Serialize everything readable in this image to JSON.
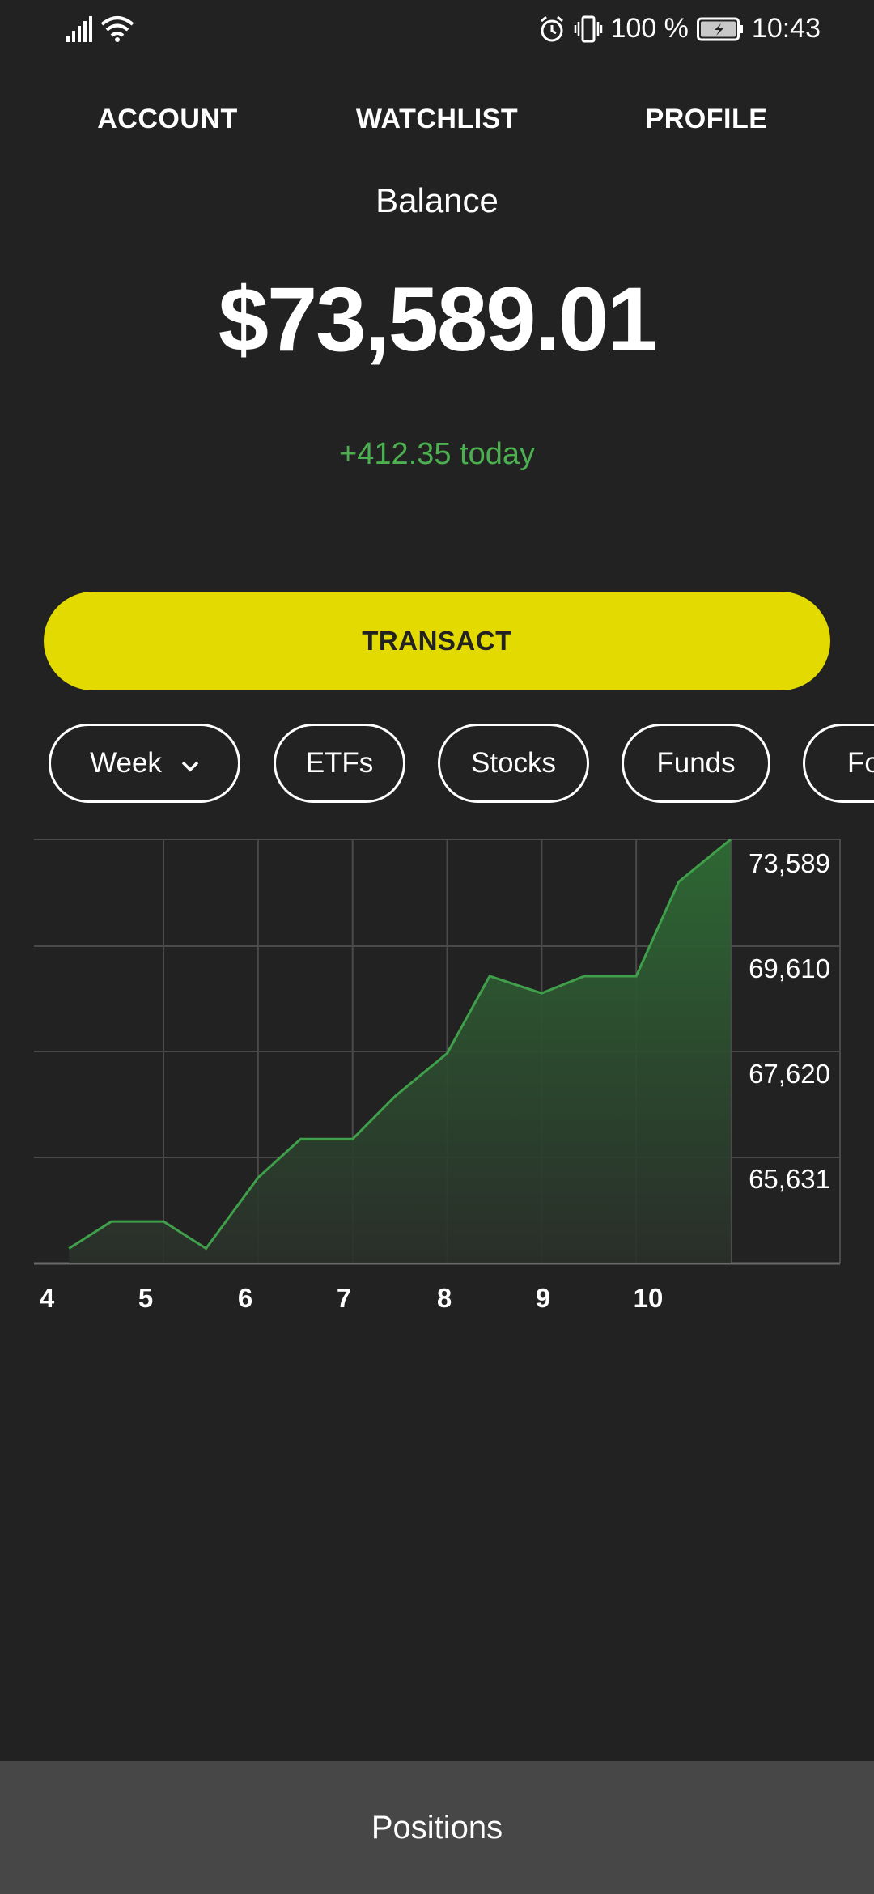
{
  "status_bar": {
    "battery": "100 %",
    "time": "10:43"
  },
  "tabs": {
    "account": "ACCOUNT",
    "watchlist": "WATCHLIST",
    "profile": "PROFILE"
  },
  "balance": {
    "label": "Balance",
    "value": "$73,589.01",
    "today_change": "+412.35 today"
  },
  "transact_label": "TRANSACT",
  "filters": {
    "period": "Week",
    "chips": [
      "ETFs",
      "Stocks",
      "Funds",
      "Fo"
    ]
  },
  "chart_data": {
    "type": "area",
    "x": [
      4.0,
      4.45,
      5.0,
      5.45,
      6.0,
      6.45,
      7.0,
      7.45,
      8.0,
      8.45,
      9.0,
      9.45,
      10.0,
      10.45,
      11.0
    ],
    "y": [
      64050,
      64680,
      64680,
      64050,
      65700,
      66600,
      66600,
      67600,
      68600,
      70400,
      70000,
      70400,
      70400,
      72600,
      73589
    ],
    "xticks": [
      "4",
      "5",
      "6",
      "7",
      "8",
      "9",
      "10"
    ],
    "yticks": [
      "73,589",
      "69,610",
      "67,620",
      "65,631"
    ],
    "grid": true,
    "colors": {
      "line": "#3f9f4a",
      "fill": "#2f6a35",
      "grid": "#4a4a4a"
    }
  },
  "positions_label": "Positions"
}
